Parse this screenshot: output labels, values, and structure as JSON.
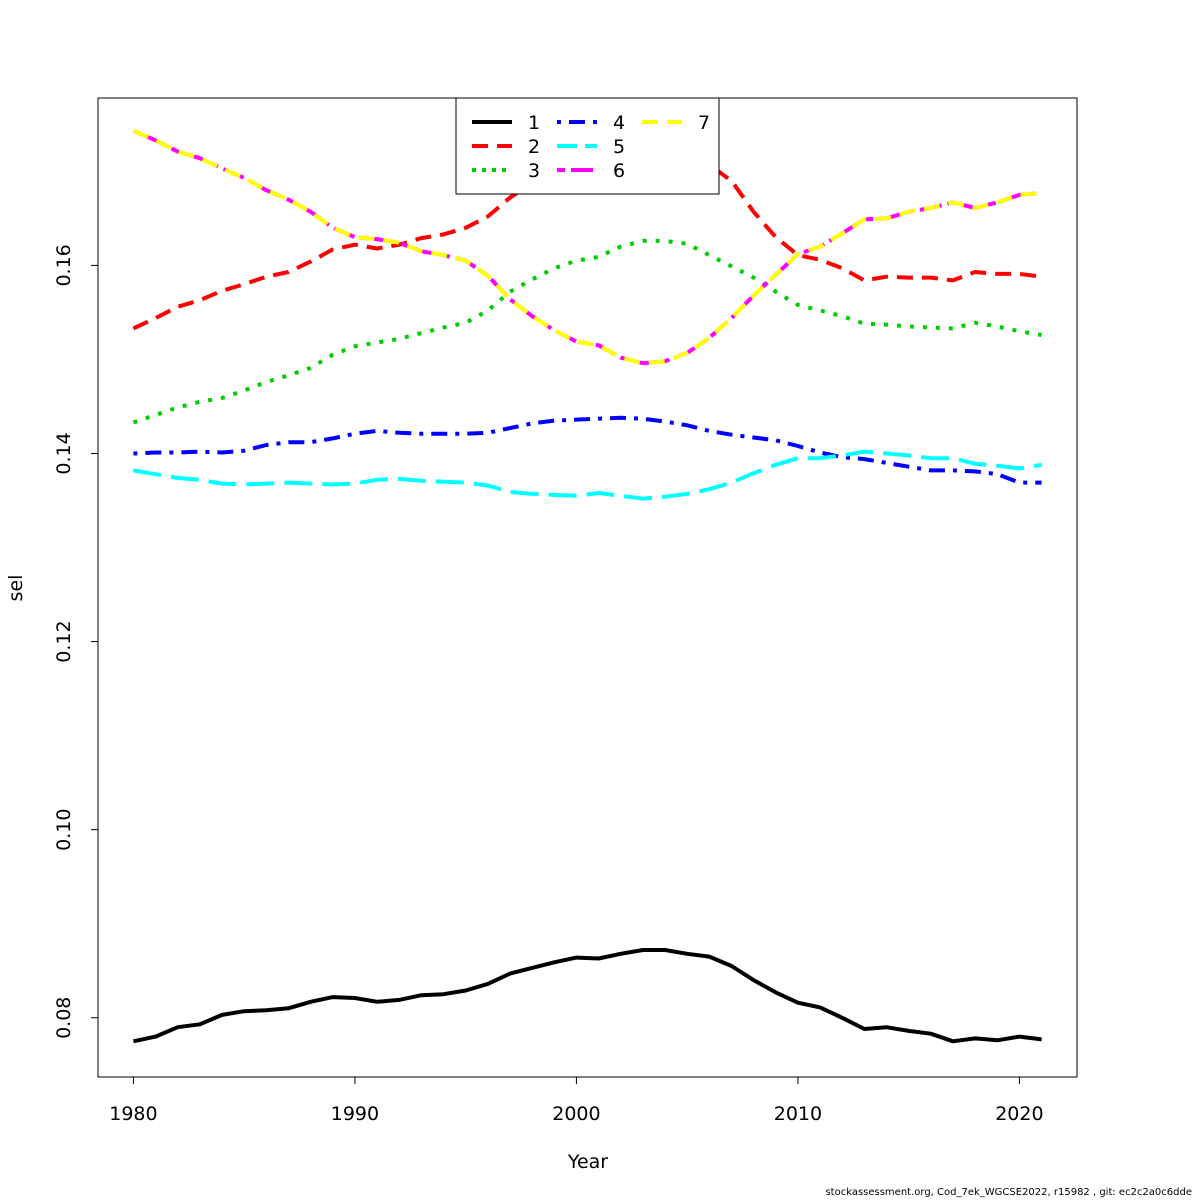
{
  "chart_data": {
    "type": "line",
    "xlabel": "Year",
    "ylabel": "sel",
    "xlim": [
      1978.4,
      2022.6
    ],
    "ylim": [
      0.0737,
      0.1778
    ],
    "x_ticks": [
      1980,
      1990,
      2000,
      2010,
      2020
    ],
    "y_ticks": [
      0.08,
      0.1,
      0.12,
      0.14,
      0.16
    ],
    "y_tick_labels": [
      "0.08",
      "0.10",
      "0.12",
      "0.14",
      "0.16"
    ],
    "x_tick_labels": [
      "1980",
      "1990",
      "2000",
      "2010",
      "2020"
    ],
    "legend_position": "top",
    "x": [
      1980,
      1981,
      1982,
      1983,
      1984,
      1985,
      1986,
      1987,
      1988,
      1989,
      1990,
      1991,
      1992,
      1993,
      1994,
      1995,
      1996,
      1997,
      1998,
      1999,
      2000,
      2001,
      2002,
      2003,
      2004,
      2005,
      2006,
      2007,
      2008,
      2009,
      2010,
      2011,
      2012,
      2013,
      2014,
      2015,
      2016,
      2017,
      2018,
      2019,
      2020,
      2021
    ],
    "series": [
      {
        "name": "1",
        "color": "#000000",
        "dash": "solid",
        "values": [
          0.0775,
          0.078,
          0.079,
          0.0793,
          0.0803,
          0.0807,
          0.0808,
          0.081,
          0.0817,
          0.0822,
          0.0821,
          0.0817,
          0.0819,
          0.0824,
          0.0825,
          0.0829,
          0.0836,
          0.0847,
          0.0853,
          0.0859,
          0.0864,
          0.0863,
          0.0868,
          0.0872,
          0.0872,
          0.0868,
          0.0865,
          0.0855,
          0.084,
          0.0827,
          0.0816,
          0.0811,
          0.08,
          0.0788,
          0.079,
          0.0786,
          0.0783,
          0.0775,
          0.0778,
          0.0776,
          0.078,
          0.0777
        ]
      },
      {
        "name": "2",
        "color": "#ff0000",
        "dash": "dashed",
        "values": [
          0.1533,
          0.1544,
          0.1556,
          0.1563,
          0.1573,
          0.158,
          0.1588,
          0.1593,
          0.1604,
          0.1617,
          0.1622,
          0.1618,
          0.1622,
          0.1629,
          0.1633,
          0.164,
          0.1652,
          0.1672,
          0.1688,
          0.17,
          0.171,
          0.1715,
          0.172,
          0.1722,
          0.1722,
          0.1718,
          0.1707,
          0.169,
          0.1657,
          0.163,
          0.1611,
          0.1606,
          0.1597,
          0.1584,
          0.1588,
          0.1587,
          0.1587,
          0.1584,
          0.1593,
          0.1591,
          0.1591,
          0.1588
        ]
      },
      {
        "name": "3",
        "color": "#00cd00",
        "dash": "dotted",
        "values": [
          0.1433,
          0.1441,
          0.1449,
          0.1455,
          0.1459,
          0.1467,
          0.1476,
          0.1483,
          0.1491,
          0.1505,
          0.1514,
          0.1518,
          0.1522,
          0.1528,
          0.1534,
          0.1539,
          0.1552,
          0.1572,
          0.1585,
          0.1597,
          0.1605,
          0.1609,
          0.162,
          0.1626,
          0.1626,
          0.1623,
          0.1611,
          0.1599,
          0.1587,
          0.1572,
          0.1558,
          0.1552,
          0.1546,
          0.1538,
          0.1537,
          0.1535,
          0.1534,
          0.1533,
          0.1539,
          0.1535,
          0.153,
          0.1526
        ]
      },
      {
        "name": "4",
        "color": "#0000ff",
        "dash": "dotdash",
        "values": [
          0.14,
          0.1401,
          0.1401,
          0.1402,
          0.1401,
          0.1403,
          0.1409,
          0.1412,
          0.1412,
          0.1416,
          0.1421,
          0.1424,
          0.1422,
          0.1421,
          0.1421,
          0.1421,
          0.1422,
          0.1427,
          0.1432,
          0.1435,
          0.1436,
          0.1437,
          0.1438,
          0.1437,
          0.1434,
          0.143,
          0.1424,
          0.142,
          0.1417,
          0.1414,
          0.1408,
          0.1401,
          0.1396,
          0.1394,
          0.139,
          0.1386,
          0.1382,
          0.1382,
          0.1381,
          0.1378,
          0.1369,
          0.1369
        ]
      },
      {
        "name": "5",
        "color": "#00ffff",
        "dash": "longdash",
        "values": [
          0.1382,
          0.1378,
          0.1374,
          0.1372,
          0.1368,
          0.1367,
          0.1368,
          0.1369,
          0.1368,
          0.1367,
          0.1368,
          0.1372,
          0.1373,
          0.1371,
          0.137,
          0.1369,
          0.1366,
          0.1359,
          0.1357,
          0.1356,
          0.1355,
          0.1358,
          0.1355,
          0.1352,
          0.1354,
          0.1357,
          0.1362,
          0.1369,
          0.1379,
          0.1388,
          0.1395,
          0.1395,
          0.1398,
          0.1402,
          0.14,
          0.1398,
          0.1395,
          0.1395,
          0.1389,
          0.1387,
          0.1384,
          0.1388
        ]
      },
      {
        "name": "6",
        "color": "#ff00ff",
        "dash": "twodash",
        "values": [
          0.1743,
          0.1733,
          0.1721,
          0.1714,
          0.1703,
          0.1693,
          0.168,
          0.167,
          0.1657,
          0.164,
          0.163,
          0.1628,
          0.1624,
          0.1615,
          0.1611,
          0.1605,
          0.1589,
          0.1564,
          0.1546,
          0.1531,
          0.1519,
          0.1515,
          0.1502,
          0.1496,
          0.1498,
          0.1507,
          0.1523,
          0.1544,
          0.1568,
          0.159,
          0.1612,
          0.162,
          0.1634,
          0.1649,
          0.165,
          0.1657,
          0.1661,
          0.1667,
          0.1661,
          0.1667,
          0.1675,
          0.1677
        ]
      },
      {
        "name": "7",
        "color": "#ffff00",
        "dash": "dashed",
        "values": [
          0.1743,
          0.1733,
          0.1721,
          0.1714,
          0.1703,
          0.1693,
          0.168,
          0.167,
          0.1657,
          0.164,
          0.163,
          0.1628,
          0.1624,
          0.1615,
          0.1611,
          0.1605,
          0.1589,
          0.1564,
          0.1546,
          0.1531,
          0.1519,
          0.1515,
          0.1502,
          0.1496,
          0.1498,
          0.1507,
          0.1523,
          0.1544,
          0.1568,
          0.159,
          0.1612,
          0.162,
          0.1634,
          0.1649,
          0.165,
          0.1657,
          0.1661,
          0.1667,
          0.1661,
          0.1667,
          0.1675,
          0.1677
        ]
      }
    ]
  },
  "footer": "stockassessment.org, Cod_7ek_WGCSE2022, r15982 , git: ec2c2a0c6dde"
}
